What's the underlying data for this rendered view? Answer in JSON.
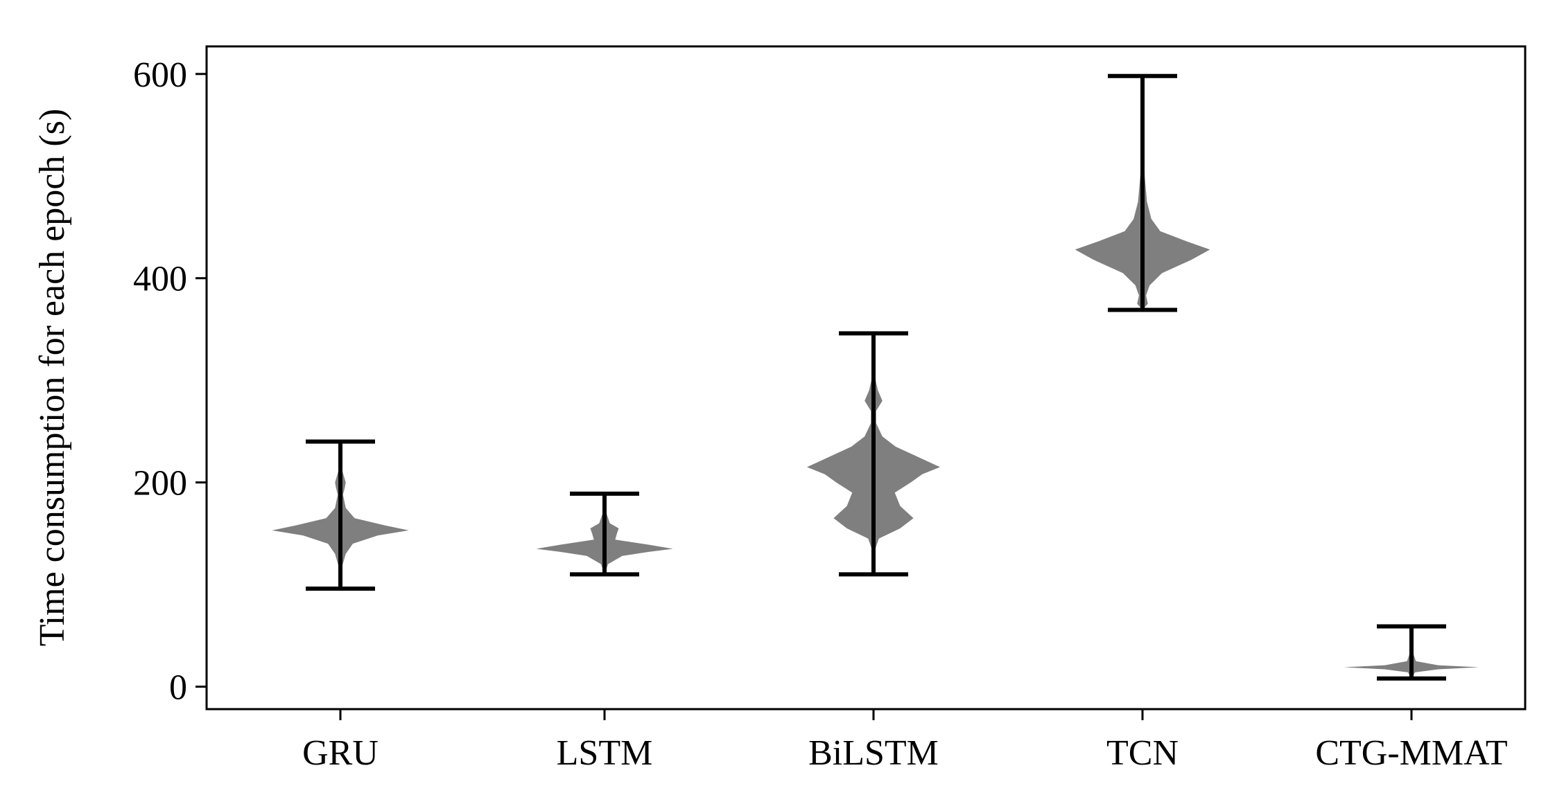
{
  "chart_data": {
    "type": "violin",
    "ylabel": "Time consumption for each epoch (s)",
    "xlabel": "",
    "ylim": [
      -22,
      627
    ],
    "yticks": [
      0,
      200,
      400,
      600
    ],
    "categories": [
      "GRU",
      "LSTM",
      "BiLSTM",
      "TCN",
      "CTG-MMAT"
    ],
    "series": [
      {
        "category": "GRU",
        "min": 96,
        "max": 240,
        "distribution": [
          [
            96,
            0.0
          ],
          [
            118,
            0.02
          ],
          [
            130,
            0.06
          ],
          [
            140,
            0.14
          ],
          [
            148,
            0.42
          ],
          [
            153,
            0.77
          ],
          [
            158,
            0.5
          ],
          [
            165,
            0.16
          ],
          [
            175,
            0.06
          ],
          [
            188,
            0.03
          ],
          [
            195,
            0.05
          ],
          [
            200,
            0.06
          ],
          [
            206,
            0.04
          ],
          [
            215,
            0.01
          ],
          [
            240,
            0.0
          ]
        ]
      },
      {
        "category": "LSTM",
        "min": 110,
        "max": 189,
        "distribution": [
          [
            110,
            0.0
          ],
          [
            120,
            0.04
          ],
          [
            128,
            0.2
          ],
          [
            132,
            0.5
          ],
          [
            135,
            0.77
          ],
          [
            139,
            0.5
          ],
          [
            144,
            0.12
          ],
          [
            150,
            0.14
          ],
          [
            155,
            0.16
          ],
          [
            160,
            0.06
          ],
          [
            170,
            0.02
          ],
          [
            189,
            0.0
          ]
        ]
      },
      {
        "category": "BiLSTM",
        "min": 110,
        "max": 346,
        "distribution": [
          [
            110,
            0.0
          ],
          [
            135,
            0.02
          ],
          [
            145,
            0.06
          ],
          [
            155,
            0.3
          ],
          [
            165,
            0.45
          ],
          [
            177,
            0.3
          ],
          [
            190,
            0.24
          ],
          [
            200,
            0.42
          ],
          [
            208,
            0.55
          ],
          [
            215,
            0.75
          ],
          [
            225,
            0.5
          ],
          [
            235,
            0.25
          ],
          [
            245,
            0.1
          ],
          [
            258,
            0.03
          ],
          [
            270,
            0.03
          ],
          [
            280,
            0.1
          ],
          [
            290,
            0.05
          ],
          [
            305,
            0.01
          ],
          [
            346,
            0.0
          ]
        ]
      },
      {
        "category": "TCN",
        "min": 369,
        "max": 598,
        "distribution": [
          [
            369,
            0.0
          ],
          [
            375,
            0.06
          ],
          [
            383,
            0.04
          ],
          [
            393,
            0.08
          ],
          [
            405,
            0.22
          ],
          [
            418,
            0.55
          ],
          [
            428,
            0.76
          ],
          [
            436,
            0.5
          ],
          [
            446,
            0.2
          ],
          [
            458,
            0.1
          ],
          [
            475,
            0.05
          ],
          [
            500,
            0.025
          ],
          [
            530,
            0.015
          ],
          [
            560,
            0.005
          ],
          [
            598,
            0.0
          ]
        ]
      },
      {
        "category": "CTG-MMAT",
        "min": 8,
        "max": 59,
        "distribution": [
          [
            8,
            0.0
          ],
          [
            14,
            0.04
          ],
          [
            17,
            0.3
          ],
          [
            19,
            0.76
          ],
          [
            21,
            0.3
          ],
          [
            25,
            0.05
          ],
          [
            35,
            0.01
          ],
          [
            59,
            0.0
          ]
        ]
      }
    ],
    "violin_color": "#7f7f7f",
    "line_color": "#000000"
  }
}
